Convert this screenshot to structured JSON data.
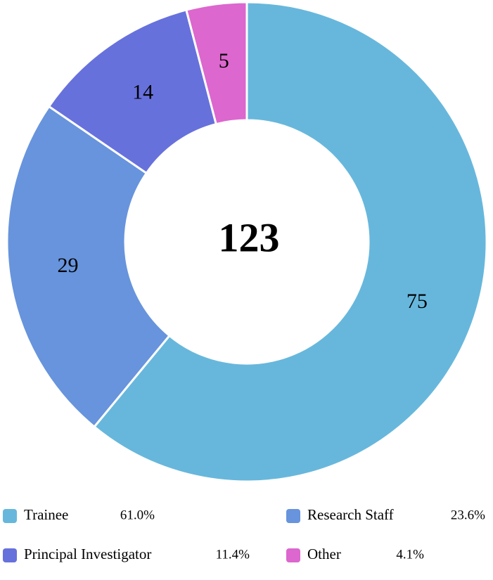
{
  "chart_data": {
    "type": "donut",
    "categories": [
      "Trainee",
      "Research Staff",
      "Principal Investigator",
      "Other"
    ],
    "values": [
      75,
      29,
      14,
      5
    ],
    "colors": [
      "#67b7dc",
      "#6794dc",
      "#6771dc",
      "#dc67ce"
    ],
    "percent_labels": [
      "61.0%",
      "23.6%",
      "11.4%",
      "4.1%"
    ],
    "total": 123
  }
}
